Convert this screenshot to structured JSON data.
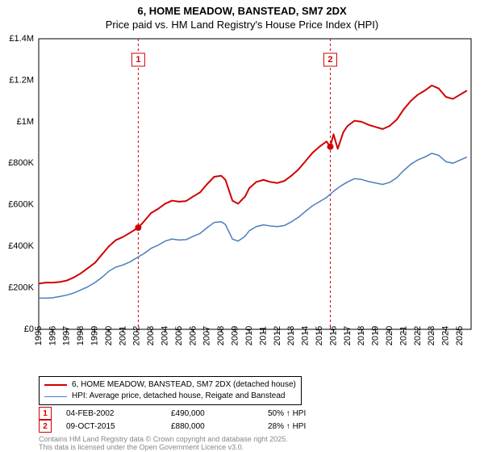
{
  "title": {
    "line1": "6, HOME MEADOW, BANSTEAD, SM7 2DX",
    "line2": "Price paid vs. HM Land Registry's House Price Index (HPI)"
  },
  "chart": {
    "type": "line",
    "background_color": "#ffffff",
    "grid_color": "#e0e0e0",
    "shade_band_color": "#dce6f0",
    "border_color": "#000000",
    "x": {
      "min": 1995,
      "max": 2025.8,
      "ticks": [
        1995,
        1996,
        1997,
        1998,
        1999,
        2000,
        2001,
        2002,
        2003,
        2004,
        2005,
        2006,
        2007,
        2008,
        2009,
        2010,
        2011,
        2012,
        2013,
        2014,
        2015,
        2016,
        2017,
        2018,
        2019,
        2020,
        2021,
        2022,
        2023,
        2024,
        2025
      ],
      "tick_label_fontsize": 11,
      "tick_label_rotation": -90
    },
    "y": {
      "min": 0,
      "max": 1400000,
      "ticks": [
        0,
        200000,
        400000,
        600000,
        800000,
        1000000,
        1200000,
        1400000
      ],
      "tick_labels": [
        "£0",
        "£200K",
        "£400K",
        "£600K",
        "£800K",
        "£1M",
        "£1.2M",
        "£1.4M"
      ],
      "tick_label_fontsize": 11
    },
    "series": [
      {
        "name": "property",
        "label": "6, HOME MEADOW, BANSTEAD, SM7 2DX (detached house)",
        "color": "#d00000",
        "line_width": 2,
        "data": [
          [
            1995,
            220000
          ],
          [
            1995.5,
            225000
          ],
          [
            1996,
            225000
          ],
          [
            1996.5,
            228000
          ],
          [
            1997,
            235000
          ],
          [
            1997.5,
            250000
          ],
          [
            1998,
            270000
          ],
          [
            1998.5,
            295000
          ],
          [
            1999,
            320000
          ],
          [
            1999.5,
            360000
          ],
          [
            2000,
            400000
          ],
          [
            2000.5,
            430000
          ],
          [
            2001,
            445000
          ],
          [
            2001.5,
            465000
          ],
          [
            2002.09,
            490000
          ],
          [
            2002.5,
            520000
          ],
          [
            2003,
            560000
          ],
          [
            2003.5,
            580000
          ],
          [
            2004,
            605000
          ],
          [
            2004.5,
            620000
          ],
          [
            2005,
            615000
          ],
          [
            2005.5,
            618000
          ],
          [
            2006,
            640000
          ],
          [
            2006.5,
            660000
          ],
          [
            2007,
            700000
          ],
          [
            2007.5,
            735000
          ],
          [
            2008,
            740000
          ],
          [
            2008.3,
            720000
          ],
          [
            2008.8,
            620000
          ],
          [
            2009.2,
            605000
          ],
          [
            2009.7,
            640000
          ],
          [
            2010,
            680000
          ],
          [
            2010.5,
            710000
          ],
          [
            2011,
            720000
          ],
          [
            2011.5,
            710000
          ],
          [
            2012,
            705000
          ],
          [
            2012.5,
            715000
          ],
          [
            2013,
            740000
          ],
          [
            2013.5,
            770000
          ],
          [
            2014,
            810000
          ],
          [
            2014.5,
            850000
          ],
          [
            2015,
            880000
          ],
          [
            2015.5,
            905000
          ],
          [
            2015.77,
            880000
          ],
          [
            2016,
            940000
          ],
          [
            2016.3,
            870000
          ],
          [
            2016.7,
            950000
          ],
          [
            2017,
            980000
          ],
          [
            2017.5,
            1005000
          ],
          [
            2018,
            1000000
          ],
          [
            2018.5,
            985000
          ],
          [
            2019,
            975000
          ],
          [
            2019.5,
            965000
          ],
          [
            2020,
            980000
          ],
          [
            2020.5,
            1010000
          ],
          [
            2021,
            1060000
          ],
          [
            2021.5,
            1100000
          ],
          [
            2022,
            1130000
          ],
          [
            2022.5,
            1150000
          ],
          [
            2023,
            1175000
          ],
          [
            2023.5,
            1160000
          ],
          [
            2024,
            1120000
          ],
          [
            2024.5,
            1110000
          ],
          [
            2025,
            1130000
          ],
          [
            2025.5,
            1150000
          ]
        ]
      },
      {
        "name": "hpi",
        "label": "HPI: Average price, detached house, Reigate and Banstead",
        "color": "#4a7ebb",
        "line_width": 1.5,
        "data": [
          [
            1995,
            150000
          ],
          [
            1995.5,
            150000
          ],
          [
            1996,
            152000
          ],
          [
            1996.5,
            158000
          ],
          [
            1997,
            165000
          ],
          [
            1997.5,
            175000
          ],
          [
            1998,
            190000
          ],
          [
            1998.5,
            205000
          ],
          [
            1999,
            225000
          ],
          [
            1999.5,
            250000
          ],
          [
            2000,
            280000
          ],
          [
            2000.5,
            300000
          ],
          [
            2001,
            310000
          ],
          [
            2001.5,
            325000
          ],
          [
            2002,
            345000
          ],
          [
            2002.5,
            365000
          ],
          [
            2003,
            390000
          ],
          [
            2003.5,
            405000
          ],
          [
            2004,
            425000
          ],
          [
            2004.5,
            435000
          ],
          [
            2005,
            430000
          ],
          [
            2005.5,
            432000
          ],
          [
            2006,
            448000
          ],
          [
            2006.5,
            462000
          ],
          [
            2007,
            490000
          ],
          [
            2007.5,
            515000
          ],
          [
            2008,
            518000
          ],
          [
            2008.3,
            505000
          ],
          [
            2008.8,
            435000
          ],
          [
            2009.2,
            425000
          ],
          [
            2009.7,
            448000
          ],
          [
            2010,
            475000
          ],
          [
            2010.5,
            495000
          ],
          [
            2011,
            503000
          ],
          [
            2011.5,
            498000
          ],
          [
            2012,
            495000
          ],
          [
            2012.5,
            500000
          ],
          [
            2013,
            518000
          ],
          [
            2013.5,
            540000
          ],
          [
            2014,
            568000
          ],
          [
            2014.5,
            595000
          ],
          [
            2015,
            615000
          ],
          [
            2015.5,
            635000
          ],
          [
            2016,
            665000
          ],
          [
            2016.5,
            690000
          ],
          [
            2017,
            710000
          ],
          [
            2017.5,
            726000
          ],
          [
            2018,
            722000
          ],
          [
            2018.5,
            712000
          ],
          [
            2019,
            705000
          ],
          [
            2019.5,
            698000
          ],
          [
            2020,
            708000
          ],
          [
            2020.5,
            730000
          ],
          [
            2021,
            765000
          ],
          [
            2021.5,
            795000
          ],
          [
            2022,
            816000
          ],
          [
            2022.5,
            830000
          ],
          [
            2023,
            848000
          ],
          [
            2023.5,
            838000
          ],
          [
            2024,
            808000
          ],
          [
            2024.5,
            800000
          ],
          [
            2025,
            815000
          ],
          [
            2025.5,
            830000
          ]
        ]
      }
    ],
    "markers": [
      {
        "x": 2002.09,
        "y": 490000,
        "color": "#d00000",
        "r": 4
      },
      {
        "x": 2015.77,
        "y": 880000,
        "color": "#d00000",
        "r": 4
      }
    ],
    "events": [
      {
        "n": "1",
        "x": 2002.09,
        "box_y_offset": 18
      },
      {
        "n": "2",
        "x": 2015.77,
        "box_y_offset": 18
      }
    ]
  },
  "legend": {
    "items": [
      {
        "color": "#d00000",
        "width": 2,
        "label": "6, HOME MEADOW, BANSTEAD, SM7 2DX (detached house)"
      },
      {
        "color": "#4a7ebb",
        "width": 1.5,
        "label": "HPI: Average price, detached house, Reigate and Banstead"
      }
    ]
  },
  "events_table": {
    "rows": [
      {
        "n": "1",
        "date": "04-FEB-2002",
        "price": "£490,000",
        "delta": "50% ↑ HPI"
      },
      {
        "n": "2",
        "date": "09-OCT-2015",
        "price": "£880,000",
        "delta": "28% ↑ HPI"
      }
    ]
  },
  "footnote": {
    "line1": "Contains HM Land Registry data © Crown copyright and database right 2025.",
    "line2": "This data is licensed under the Open Government Licence v3.0."
  }
}
